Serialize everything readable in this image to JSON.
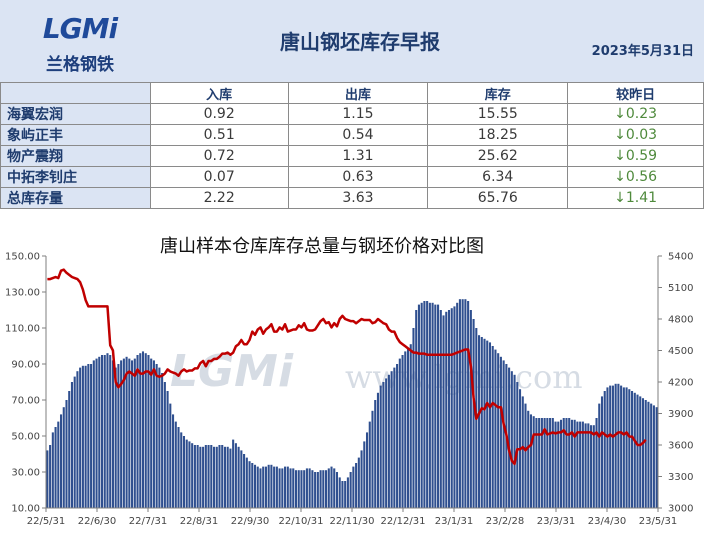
{
  "header": {
    "logo_text": "LGMi",
    "logo_sub": "兰格钢铁",
    "title": "唐山钢坯库存早报",
    "date": "2023年5月31日"
  },
  "table": {
    "columns": [
      "入库",
      "出库",
      "库存",
      "较昨日"
    ],
    "rows": [
      {
        "name": "海翼宏润",
        "in": "0.92",
        "out": "1.15",
        "stock": "15.55",
        "change": "↓0.23"
      },
      {
        "name": "象屿正丰",
        "in": "0.51",
        "out": "0.54",
        "stock": "18.25",
        "change": "↓0.03"
      },
      {
        "name": "物产震翔",
        "in": "0.72",
        "out": "1.31",
        "stock": "25.62",
        "change": "↓0.59"
      },
      {
        "name": "中拓李钊庄",
        "in": "0.07",
        "out": "0.63",
        "stock": "6.34",
        "change": "↓0.56"
      },
      {
        "name": "总库存量",
        "in": "2.22",
        "out": "3.63",
        "stock": "65.76",
        "change": "↓1.41"
      }
    ]
  },
  "chart_data": {
    "type": "bar+line",
    "title": "唐山样本仓库库存总量与钢坯价格对比图",
    "watermark_logo": "LGMi",
    "watermark_url": "www.lgmi.com",
    "x_tick_labels": [
      "22/5/31",
      "22/6/30",
      "22/7/31",
      "22/8/31",
      "22/9/30",
      "22/10/31",
      "22/11/30",
      "22/12/31",
      "23/1/31",
      "23/2/28",
      "23/3/31",
      "23/4/30",
      "23/5/31"
    ],
    "y_left": {
      "min": 10,
      "max": 150,
      "ticks": [
        "10.00",
        "30.00",
        "50.00",
        "70.00",
        "90.00",
        "110.00",
        "130.00",
        "150.00"
      ]
    },
    "y_right": {
      "min": 3000,
      "max": 5400,
      "ticks": [
        "3000",
        "3300",
        "3600",
        "3900",
        "4200",
        "4500",
        "4800",
        "5100",
        "5400"
      ]
    },
    "series": [
      {
        "kind": "bar",
        "axis": "left",
        "color": "#2f4f8f",
        "values": [
          42,
          45,
          52,
          55,
          58,
          62,
          66,
          70,
          75,
          80,
          83,
          86,
          88,
          89,
          89,
          90,
          90,
          92,
          93,
          94,
          95,
          95,
          96,
          95,
          92,
          88,
          90,
          92,
          93,
          94,
          93,
          92,
          93,
          95,
          96,
          97,
          96,
          95,
          93,
          92,
          90,
          88,
          85,
          80,
          75,
          68,
          62,
          58,
          55,
          52,
          50,
          48,
          47,
          46,
          45,
          45,
          44,
          44,
          45,
          45,
          45,
          44,
          44,
          45,
          45,
          44,
          44,
          43,
          48,
          46,
          44,
          42,
          40,
          38,
          36,
          35,
          34,
          33,
          32,
          33,
          33,
          34,
          34,
          33,
          33,
          32,
          32,
          33,
          33,
          32,
          32,
          31,
          31,
          31,
          31,
          32,
          32,
          31,
          30,
          30,
          31,
          31,
          31,
          32,
          33,
          32,
          30,
          27,
          25,
          25,
          27,
          30,
          33,
          35,
          38,
          42,
          47,
          52,
          58,
          64,
          70,
          74,
          78,
          80,
          82,
          84,
          86,
          88,
          90,
          93,
          95,
          97,
          99,
          101,
          110,
          120,
          123,
          124,
          125,
          125,
          124,
          124,
          123,
          123,
          120,
          117,
          119,
          120,
          121,
          122,
          124,
          126,
          126,
          126,
          125,
          120,
          115,
          110,
          106,
          105,
          104,
          103,
          102,
          100,
          98,
          96,
          94,
          92,
          90,
          88,
          86,
          84,
          80,
          76,
          72,
          68,
          64,
          62,
          61,
          60,
          60,
          60,
          60,
          60,
          60,
          60,
          58,
          58,
          59,
          60,
          60,
          60,
          59,
          59,
          58,
          58,
          58,
          57,
          57,
          56,
          56,
          60,
          68,
          72,
          75,
          77,
          78,
          78,
          79,
          79,
          78,
          77,
          77,
          76,
          75,
          74,
          73,
          72,
          71,
          70,
          69,
          68,
          67,
          66
        ]
      },
      {
        "kind": "line",
        "axis": "right",
        "color": "#c00000",
        "values": [
          5180,
          5180,
          5190,
          5200,
          5190,
          5260,
          5270,
          5240,
          5220,
          5200,
          5190,
          5180,
          5150,
          5080,
          4980,
          4920,
          4920,
          4920,
          4920,
          4920,
          4920,
          4920,
          4920,
          4550,
          4500,
          4200,
          4150,
          4180,
          4220,
          4280,
          4300,
          4280,
          4260,
          4320,
          4280,
          4280,
          4300,
          4300,
          4270,
          4320,
          4260,
          4250,
          4260,
          4280,
          4320,
          4300,
          4290,
          4280,
          4260,
          4300,
          4320,
          4300,
          4310,
          4310,
          4330,
          4330,
          4380,
          4400,
          4350,
          4400,
          4400,
          4420,
          4420,
          4440,
          4470,
          4470,
          4480,
          4460,
          4480,
          4540,
          4560,
          4600,
          4560,
          4560,
          4600,
          4680,
          4650,
          4700,
          4720,
          4660,
          4700,
          4720,
          4750,
          4680,
          4680,
          4720,
          4700,
          4750,
          4680,
          4690,
          4700,
          4700,
          4740,
          4720,
          4760,
          4700,
          4690,
          4690,
          4700,
          4740,
          4780,
          4800,
          4760,
          4770,
          4720,
          4760,
          4730,
          4800,
          4830,
          4800,
          4790,
          4780,
          4780,
          4760,
          4780,
          4800,
          4790,
          4790,
          4790,
          4760,
          4770,
          4800,
          4780,
          4760,
          4750,
          4700,
          4680,
          4680,
          4620,
          4580,
          4560,
          4540,
          4520,
          4500,
          4480,
          4480,
          4470,
          4470,
          4470,
          4460,
          4460,
          4460,
          4460,
          4460,
          4460,
          4460,
          4460,
          4460,
          4460,
          4470,
          4480,
          4490,
          4500,
          4510,
          4510,
          4350,
          4050,
          3850,
          3900,
          3950,
          3940,
          4000,
          3960,
          4000,
          3980,
          3960,
          3960,
          3800,
          3700,
          3550,
          3450,
          3420,
          3560,
          3560,
          3580,
          3550,
          3580,
          3600,
          3700,
          3700,
          3700,
          3700,
          3750,
          3700,
          3710,
          3720,
          3710,
          3720,
          3720,
          3740,
          3700,
          3700,
          3720,
          3680,
          3720,
          3720,
          3720,
          3720,
          3720,
          3720,
          3700,
          3720,
          3680,
          3720,
          3700,
          3680,
          3700,
          3680,
          3700,
          3720,
          3720,
          3700,
          3720,
          3680,
          3680,
          3640,
          3600,
          3600,
          3620,
          3650
        ]
      }
    ]
  }
}
